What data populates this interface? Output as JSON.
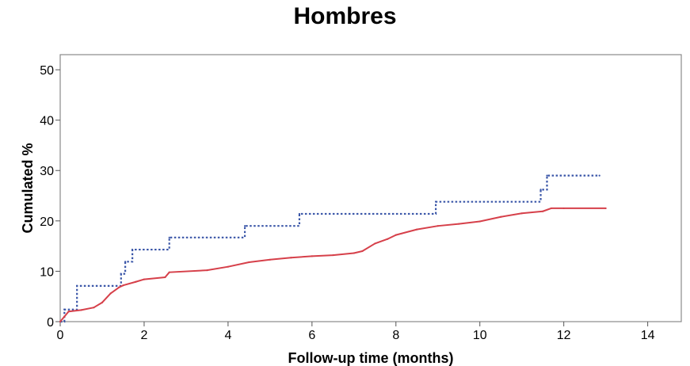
{
  "chart_data": {
    "type": "line",
    "title": "Hombres",
    "xlabel": "Follow-up time (months)",
    "ylabel": "Cumulated %",
    "xlim": [
      0,
      14.8
    ],
    "ylim": [
      0,
      53
    ],
    "x_ticks": [
      0,
      2,
      4,
      6,
      8,
      10,
      12,
      14
    ],
    "y_ticks": [
      0,
      10,
      20,
      30,
      40,
      50
    ],
    "x_tick_labels": [
      "0",
      "2",
      "4",
      "6",
      "8",
      "10",
      "12",
      "14"
    ],
    "y_tick_labels": [
      "0",
      "10",
      "20",
      "30",
      "40",
      "50"
    ],
    "grid": false,
    "legend": "none",
    "series": [
      {
        "style": "dotted-step",
        "color": "#3a56a8",
        "x": [
          0,
          0.1,
          0.4,
          1.45,
          1.55,
          1.72,
          2.6,
          4.4,
          5.7,
          8.95,
          11.45,
          11.6,
          12.85
        ],
        "y": [
          0,
          2.4,
          7.1,
          9.5,
          11.9,
          14.3,
          16.7,
          19.0,
          21.4,
          23.8,
          26.2,
          29.0,
          29.0
        ]
      },
      {
        "style": "solid",
        "color": "#d6404a",
        "x": [
          0,
          0.1,
          0.2,
          0.5,
          0.8,
          1.0,
          1.2,
          1.4,
          1.5,
          1.8,
          2.0,
          2.5,
          2.6,
          3.5,
          4.0,
          4.5,
          5.0,
          5.5,
          6.0,
          6.5,
          7.0,
          7.2,
          7.5,
          7.8,
          8.0,
          8.5,
          9.0,
          9.5,
          10.0,
          10.5,
          11.0,
          11.5,
          11.7,
          12.0,
          13.0
        ],
        "y": [
          0,
          1.0,
          2.0,
          2.3,
          2.8,
          3.8,
          5.6,
          6.8,
          7.2,
          7.9,
          8.4,
          8.8,
          9.8,
          10.2,
          10.9,
          11.8,
          12.3,
          12.7,
          13.0,
          13.2,
          13.6,
          14.0,
          15.5,
          16.4,
          17.2,
          18.3,
          19.0,
          19.4,
          19.9,
          20.8,
          21.5,
          21.9,
          22.5,
          22.5,
          22.5
        ]
      }
    ]
  }
}
